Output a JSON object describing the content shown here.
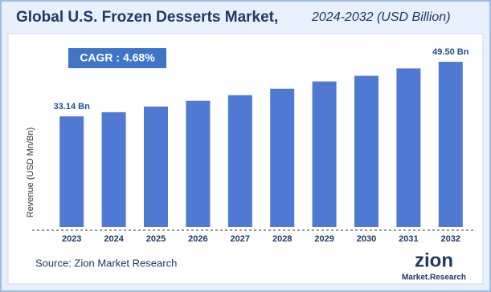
{
  "chart_data": {
    "type": "bar",
    "title": "Global U.S. Frozen Desserts Market,",
    "subtitle": "2024-2032 (USD Billion)",
    "y_label": "Revenue (USD Mn/Bn)",
    "annotation": "CAGR : 4.68%",
    "source": "Source: Zion Market Research",
    "logo": {
      "name": "zion",
      "tagline": "Market.Research"
    },
    "categories": [
      "2023",
      "2024",
      "2025",
      "2026",
      "2027",
      "2028",
      "2029",
      "2030",
      "2031",
      "2032"
    ],
    "values": [
      33.14,
      34.4,
      36.1,
      37.8,
      39.5,
      41.4,
      43.6,
      45.3,
      47.5,
      49.5
    ],
    "value_labels": [
      "33.14 Bn",
      null,
      null,
      null,
      null,
      null,
      null,
      null,
      null,
      "49.50 Bn"
    ],
    "color": "#4f79d2"
  }
}
